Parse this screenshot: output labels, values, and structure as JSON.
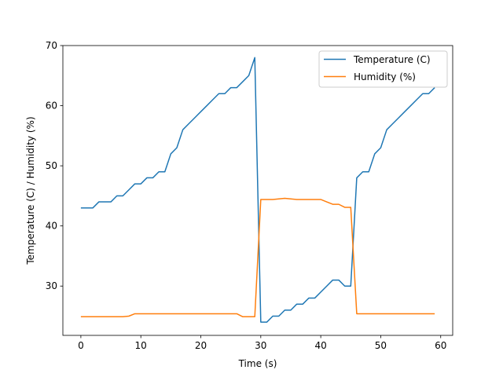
{
  "chart_data": {
    "type": "line",
    "title": "",
    "xlabel": "Time (s)",
    "ylabel": "Temperature (C) / Humidity (%)",
    "xlim": [
      -3,
      62
    ],
    "ylim": [
      21.8,
      70.0
    ],
    "xticks": [
      0,
      10,
      20,
      30,
      40,
      50,
      60
    ],
    "yticks": [
      30,
      40,
      50,
      60,
      70
    ],
    "grid": false,
    "legend_position": "top-right",
    "x": [
      0,
      1,
      2,
      3,
      4,
      5,
      6,
      7,
      8,
      9,
      10,
      11,
      12,
      13,
      14,
      15,
      16,
      17,
      18,
      19,
      20,
      21,
      22,
      23,
      24,
      25,
      26,
      27,
      28,
      29,
      30,
      31,
      32,
      33,
      34,
      35,
      36,
      37,
      38,
      39,
      40,
      41,
      42,
      43,
      44,
      45,
      46,
      47,
      48,
      49,
      50,
      51,
      52,
      53,
      54,
      55,
      56,
      57,
      58,
      59
    ],
    "series": [
      {
        "name": "Temperature (C)",
        "color": "#1f77b4",
        "values": [
          43,
          43,
          43,
          44,
          44,
          44,
          45,
          45,
          46,
          47,
          47,
          48,
          48,
          49,
          49,
          52,
          53,
          56,
          57,
          58,
          59,
          60,
          61,
          62,
          62,
          63,
          63,
          64,
          65,
          68,
          24,
          24,
          25,
          25,
          26,
          26,
          27,
          27,
          28,
          28,
          29,
          30,
          31,
          31,
          30,
          30,
          48,
          49,
          49,
          52,
          53,
          56,
          57,
          58,
          59,
          60,
          61,
          62,
          62,
          63
        ]
      },
      {
        "name": "Humidity (%)",
        "color": "#ff7f0e",
        "values": [
          24.9,
          24.9,
          24.9,
          24.9,
          24.9,
          24.9,
          24.9,
          24.9,
          25.0,
          25.4,
          25.4,
          25.4,
          25.4,
          25.4,
          25.4,
          25.4,
          25.4,
          25.4,
          25.4,
          25.4,
          25.4,
          25.4,
          25.4,
          25.4,
          25.4,
          25.4,
          25.4,
          24.9,
          24.9,
          24.9,
          44.4,
          44.4,
          44.4,
          44.5,
          44.6,
          44.5,
          44.4,
          44.4,
          44.4,
          44.4,
          44.4,
          44.0,
          43.6,
          43.6,
          43.1,
          43.1,
          25.4,
          25.4,
          25.4,
          25.4,
          25.4,
          25.4,
          25.4,
          25.4,
          25.4,
          25.4,
          25.4,
          25.4,
          25.4,
          25.4
        ]
      }
    ]
  }
}
